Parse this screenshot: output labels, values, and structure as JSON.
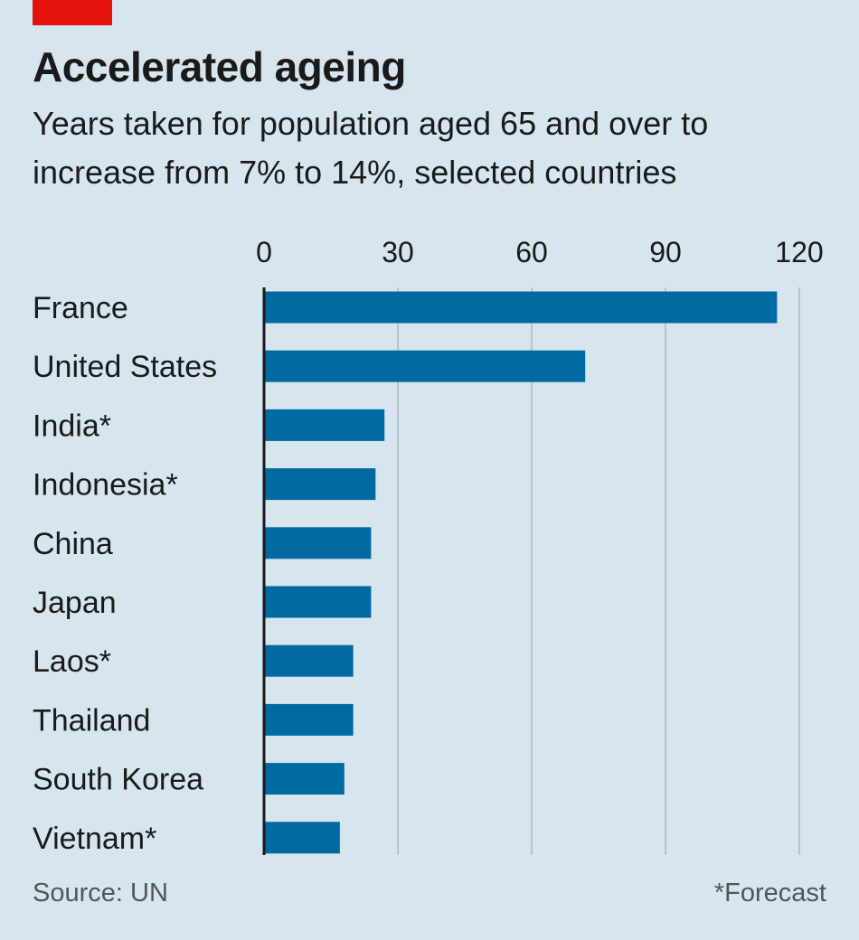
{
  "header": {
    "title": "Accelerated ageing",
    "subtitle": "Years taken for population aged 65 and over to increase from 7% to 14%, selected countries"
  },
  "colors": {
    "brand_red": "#e3120b",
    "bar": "#006ba2",
    "grid": "#b4c6d1",
    "background": "#d6e5ee"
  },
  "chart_data": {
    "type": "bar",
    "orientation": "horizontal",
    "title": "Accelerated ageing",
    "subtitle": "Years taken for population aged 65 and over to increase from 7% to 14%, selected countries",
    "categories": [
      "France",
      "United States",
      "India*",
      "Indonesia*",
      "China",
      "Japan",
      "Laos*",
      "Thailand",
      "South Korea",
      "Vietnam*"
    ],
    "values": [
      115,
      72,
      27,
      25,
      24,
      24,
      20,
      20,
      18,
      17
    ],
    "xlim": [
      0,
      120
    ],
    "xticks": [
      0,
      30,
      60,
      90,
      120
    ],
    "xtick_labels": [
      "0",
      "30",
      "60",
      "90",
      "120"
    ],
    "xlabel": "",
    "ylabel": "",
    "grid": true,
    "axis_position": "top"
  },
  "footer": {
    "source": "Source: UN",
    "note": "*Forecast"
  }
}
